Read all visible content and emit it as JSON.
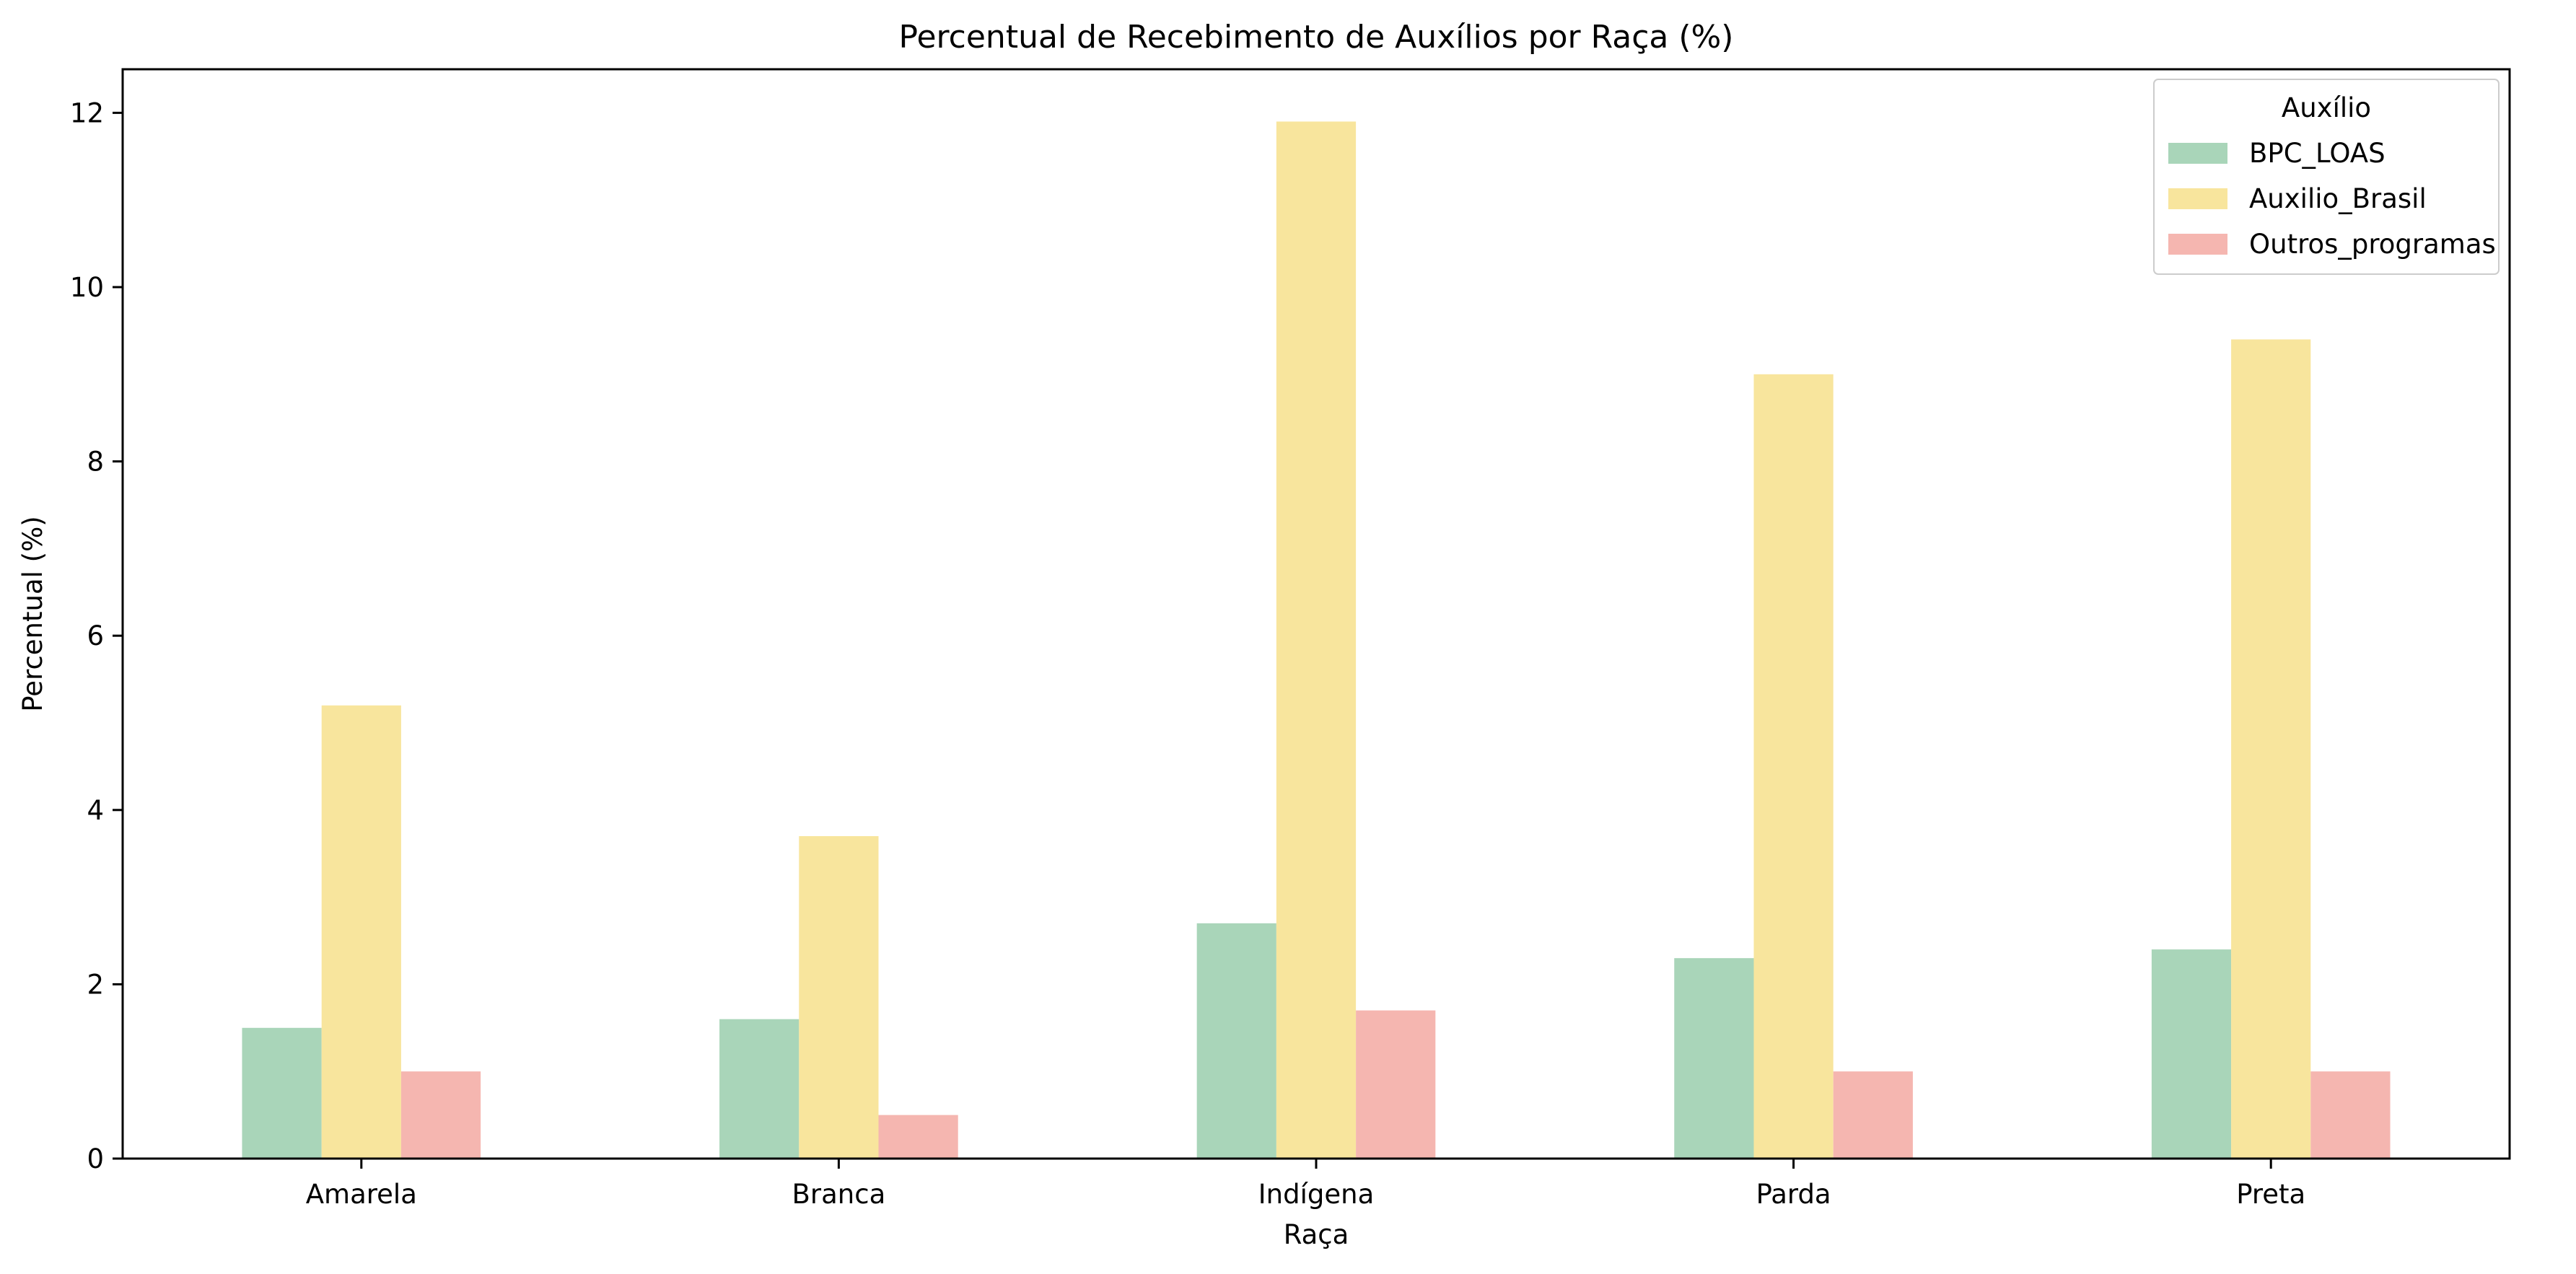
{
  "chart_data": {
    "type": "bar",
    "title": "Percentual de Recebimento de Auxílios por Raça (%)",
    "xlabel": "Raça",
    "ylabel": "Percentual (%)",
    "categories": [
      "Amarela",
      "Branca",
      "Indígena",
      "Parda",
      "Preta"
    ],
    "series": [
      {
        "name": "BPC_LOAS",
        "color": "#a9d5b9",
        "values": [
          1.5,
          1.6,
          2.7,
          2.3,
          2.4
        ]
      },
      {
        "name": "Auxilio_Brasil",
        "color": "#f8e59d",
        "values": [
          5.2,
          3.7,
          11.9,
          9.0,
          9.4
        ]
      },
      {
        "name": "Outros_programas",
        "color": "#f5b6b0",
        "values": [
          1.0,
          0.5,
          1.7,
          1.0,
          1.0
        ]
      }
    ],
    "ylim": [
      0,
      12.5
    ],
    "yticks": [
      0,
      2,
      4,
      6,
      8,
      10,
      12
    ],
    "legend_title": "Auxílio",
    "legend_position": "top-right",
    "grid": false
  }
}
